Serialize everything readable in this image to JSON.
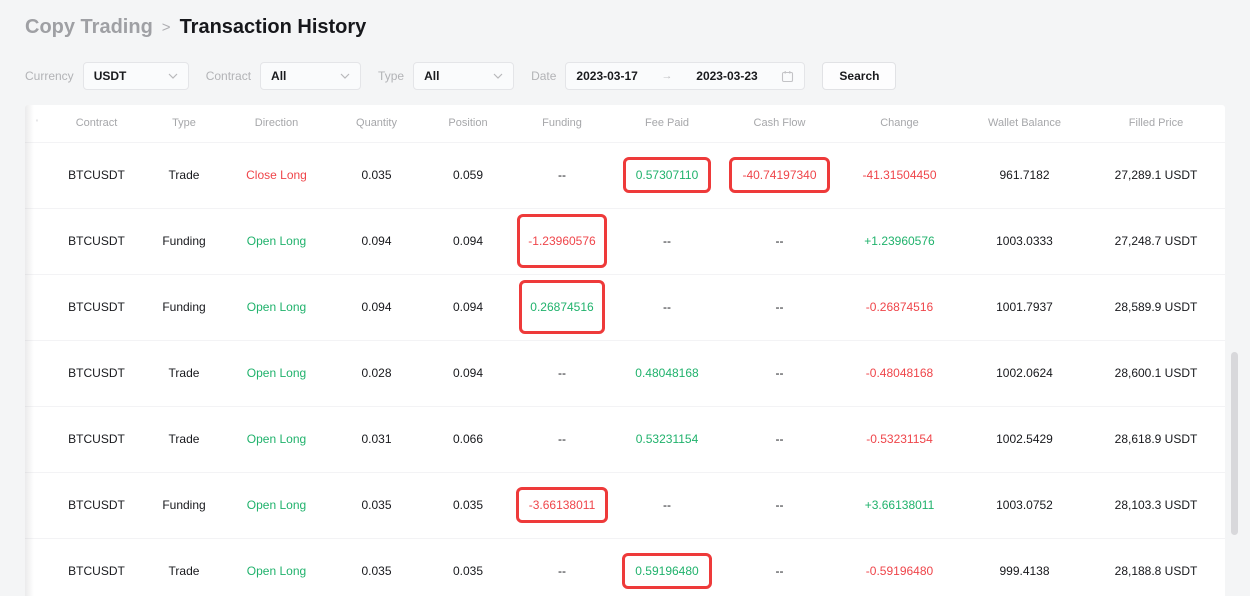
{
  "breadcrumb": {
    "parent": "Copy Trading",
    "separator": ">",
    "current": "Transaction History"
  },
  "filters": {
    "currency": {
      "label": "Currency",
      "value": "USDT"
    },
    "contract": {
      "label": "Contract",
      "value": "All"
    },
    "type": {
      "label": "Type",
      "value": "All"
    },
    "date": {
      "label": "Date",
      "from": "2023-03-17",
      "arrow": "→",
      "to": "2023-03-23"
    },
    "search_label": "Search"
  },
  "table": {
    "corner_mark": "'",
    "columns": [
      "Contract",
      "Type",
      "Direction",
      "Quantity",
      "Position",
      "Funding",
      "Fee Paid",
      "Cash Flow",
      "Change",
      "Wallet Balance",
      "Filled Price"
    ],
    "rows": [
      {
        "contract": "BTCUSDT",
        "type": "Trade",
        "direction": "Close Long",
        "quantity": "0.035",
        "position": "0.059",
        "funding": "--",
        "fee_paid": "0.57307110",
        "cash_flow": "-40.74197340",
        "change": "-41.31504450",
        "wallet_balance": "961.7182",
        "filled_price": "27,289.1 USDT",
        "tones": {
          "direction": "neg",
          "fee_paid": "pos",
          "cash_flow": "neg",
          "change": "neg"
        },
        "highlights": [
          "fee_paid",
          "cash_flow"
        ],
        "highlight_size": "normal"
      },
      {
        "contract": "BTCUSDT",
        "type": "Funding",
        "direction": "Open Long",
        "quantity": "0.094",
        "position": "0.094",
        "funding": "-1.23960576",
        "fee_paid": "--",
        "cash_flow": "--",
        "change": "+1.23960576",
        "wallet_balance": "1003.0333",
        "filled_price": "27,248.7 USDT",
        "tones": {
          "direction": "pos",
          "funding": "neg",
          "change": "pos"
        },
        "highlights": [
          "funding"
        ],
        "highlight_size": "tall"
      },
      {
        "contract": "BTCUSDT",
        "type": "Funding",
        "direction": "Open Long",
        "quantity": "0.094",
        "position": "0.094",
        "funding": "0.26874516",
        "fee_paid": "--",
        "cash_flow": "--",
        "change": "-0.26874516",
        "wallet_balance": "1001.7937",
        "filled_price": "28,589.9 USDT",
        "tones": {
          "direction": "pos",
          "funding": "pos",
          "change": "neg"
        },
        "highlights": [
          "funding"
        ],
        "highlight_size": "tall"
      },
      {
        "contract": "BTCUSDT",
        "type": "Trade",
        "direction": "Open Long",
        "quantity": "0.028",
        "position": "0.094",
        "funding": "--",
        "fee_paid": "0.48048168",
        "cash_flow": "--",
        "change": "-0.48048168",
        "wallet_balance": "1002.0624",
        "filled_price": "28,600.1 USDT",
        "tones": {
          "direction": "pos",
          "fee_paid": "pos",
          "change": "neg"
        },
        "highlights": [],
        "highlight_size": "normal"
      },
      {
        "contract": "BTCUSDT",
        "type": "Trade",
        "direction": "Open Long",
        "quantity": "0.031",
        "position": "0.066",
        "funding": "--",
        "fee_paid": "0.53231154",
        "cash_flow": "--",
        "change": "-0.53231154",
        "wallet_balance": "1002.5429",
        "filled_price": "28,618.9 USDT",
        "tones": {
          "direction": "pos",
          "fee_paid": "pos",
          "change": "neg"
        },
        "highlights": [],
        "highlight_size": "normal"
      },
      {
        "contract": "BTCUSDT",
        "type": "Funding",
        "direction": "Open Long",
        "quantity": "0.035",
        "position": "0.035",
        "funding": "-3.66138011",
        "fee_paid": "--",
        "cash_flow": "--",
        "change": "+3.66138011",
        "wallet_balance": "1003.0752",
        "filled_price": "28,103.3 USDT",
        "tones": {
          "direction": "pos",
          "funding": "neg",
          "change": "pos"
        },
        "highlights": [
          "funding"
        ],
        "highlight_size": "normal"
      },
      {
        "contract": "BTCUSDT",
        "type": "Trade",
        "direction": "Open Long",
        "quantity": "0.035",
        "position": "0.035",
        "funding": "--",
        "fee_paid": "0.59196480",
        "cash_flow": "--",
        "change": "-0.59196480",
        "wallet_balance": "999.4138",
        "filled_price": "28,188.8 USDT",
        "tones": {
          "direction": "pos",
          "fee_paid": "pos",
          "change": "neg"
        },
        "highlights": [
          "fee_paid"
        ],
        "highlight_size": "normal"
      }
    ]
  },
  "colors": {
    "positive": "#20b26c",
    "negative": "#ef454a",
    "annotation_box": "#ee3a3a"
  }
}
